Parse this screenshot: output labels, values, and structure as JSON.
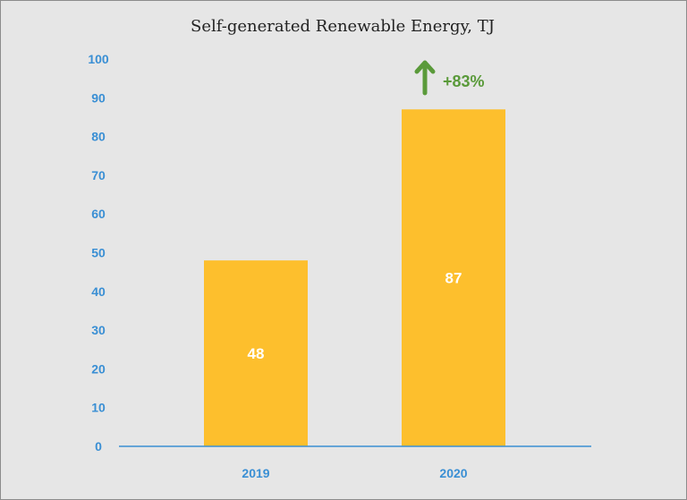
{
  "chart_data": {
    "type": "bar",
    "title": "Self-generated Renewable Energy, TJ",
    "xlabel": "",
    "ylabel": "",
    "categories": [
      "2019",
      "2020"
    ],
    "values": [
      48,
      87
    ],
    "data_labels": [
      "48",
      "87"
    ],
    "ylim": [
      0,
      100
    ],
    "yticks": [
      "0",
      "10",
      "20",
      "30",
      "40",
      "50",
      "60",
      "70",
      "80",
      "90",
      "100"
    ],
    "grid": false,
    "legend": "none",
    "annotation": {
      "text": "+83%",
      "icon": "up-arrow-icon",
      "target_category": "2020"
    },
    "colors": {
      "bar": "#fdbf2d",
      "axis": "#3a8fd4",
      "annotation": "#5a9a3a",
      "background": "#e6e6e6"
    }
  }
}
